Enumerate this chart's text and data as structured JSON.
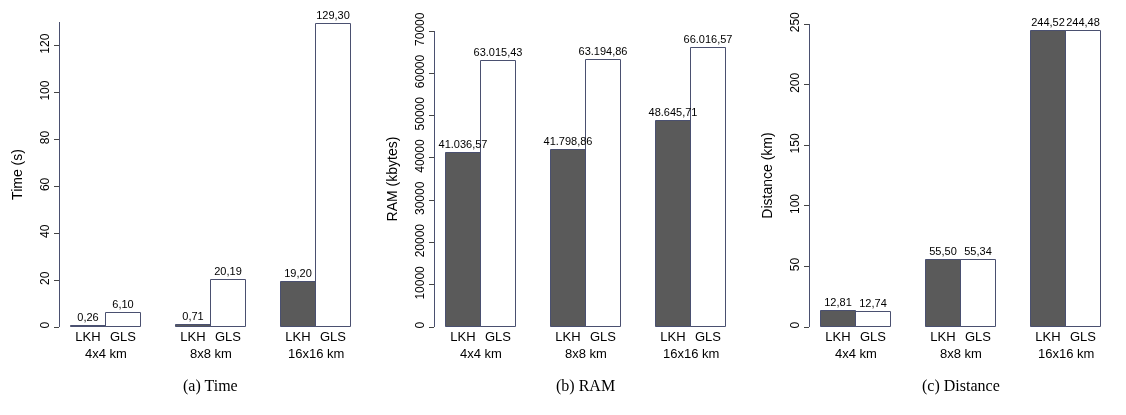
{
  "chart_data": [
    {
      "type": "bar",
      "title": "(a) Time",
      "ylabel": "Time (s)",
      "categories": [
        "4x4 km",
        "8x8 km",
        "16x16 km"
      ],
      "ylim": [
        0,
        130
      ],
      "yticks": [
        0,
        20,
        40,
        60,
        80,
        100,
        120
      ],
      "grid": false,
      "legend": false,
      "series": [
        {
          "name": "LKH",
          "color": "#5a5a5a",
          "values": [
            0.26,
            0.71,
            19.2
          ],
          "value_labels": [
            "0,26",
            "0,71",
            "19,20"
          ]
        },
        {
          "name": "GLS",
          "color": "#ffffff",
          "values": [
            6.1,
            20.19,
            129.3
          ],
          "value_labels": [
            "6,10",
            "20,19",
            "129,30"
          ]
        }
      ]
    },
    {
      "type": "bar",
      "title": "(b) RAM",
      "ylabel": "RAM (kbytes)",
      "categories": [
        "4x4 km",
        "8x8 km",
        "16x16 km"
      ],
      "ylim": [
        0,
        70000
      ],
      "yticks": [
        0,
        10000,
        20000,
        30000,
        40000,
        50000,
        60000,
        70000
      ],
      "grid": false,
      "legend": false,
      "series": [
        {
          "name": "LKH",
          "color": "#5a5a5a",
          "values": [
            41036.57,
            41798.86,
            48645.71
          ],
          "value_labels": [
            "41.036,57",
            "41.798,86",
            "48.645,71"
          ]
        },
        {
          "name": "GLS",
          "color": "#ffffff",
          "values": [
            63015.43,
            63194.86,
            66016.57
          ],
          "value_labels": [
            "63.015,43",
            "63.194,86",
            "66.016,57"
          ]
        }
      ]
    },
    {
      "type": "bar",
      "title": "(c) Distance",
      "ylabel": "Distance (km)",
      "categories": [
        "4x4 km",
        "8x8 km",
        "16x16 km"
      ],
      "ylim": [
        0,
        250
      ],
      "yticks": [
        0,
        50,
        100,
        150,
        200,
        250
      ],
      "grid": false,
      "legend": false,
      "series": [
        {
          "name": "LKH",
          "color": "#5a5a5a",
          "values": [
            12.81,
            55.5,
            244.52
          ],
          "value_labels": [
            "12,81",
            "55,50",
            "244,52"
          ]
        },
        {
          "name": "GLS",
          "color": "#ffffff",
          "values": [
            12.74,
            55.34,
            244.48
          ],
          "value_labels": [
            "12,74",
            "55,34",
            "244,48"
          ]
        }
      ]
    }
  ]
}
